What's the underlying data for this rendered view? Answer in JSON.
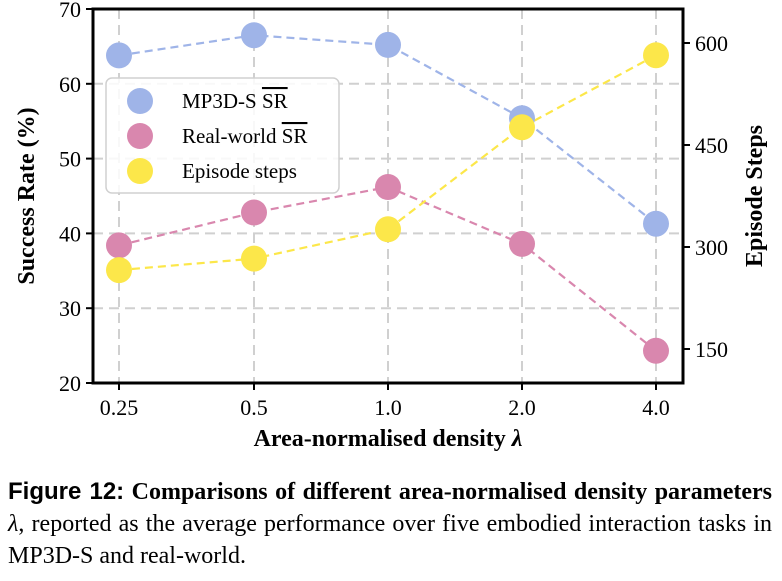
{
  "chart_data": {
    "type": "line",
    "categories": [
      "0.25",
      "0.5",
      "1.0",
      "2.0",
      "4.0"
    ],
    "xlabel": "Area-normalised density λ",
    "ylabel": "Success Rate (%)",
    "y2label": "Episode Steps",
    "ylim": [
      20,
      70
    ],
    "y2lim": [
      100,
      650
    ],
    "yticks": [
      "20",
      "30",
      "40",
      "50",
      "60",
      "70"
    ],
    "y2ticks": [
      "150",
      "300",
      "450",
      "600"
    ],
    "grid": true,
    "legend_position": "upper-left",
    "series": [
      {
        "name": "MP3D-S SR",
        "axis": "left",
        "color": "#9fb4e8",
        "values": [
          63.8,
          66.5,
          65.2,
          55.4,
          41.3
        ]
      },
      {
        "name": "Real-world SR",
        "axis": "left",
        "color": "#d987ae",
        "values": [
          38.4,
          42.8,
          46.2,
          38.6,
          24.3
        ]
      },
      {
        "name": "Episode steps",
        "axis": "right",
        "color": "#fce74a",
        "values": [
          266,
          283,
          326,
          476,
          582
        ]
      }
    ]
  },
  "caption": {
    "label": "Figure 12:",
    "title": "Comparisons of different area-normalised density parameters",
    "lambda": "λ",
    "rest": ", reported as the average performance over five embodied interaction tasks in MP3D-S and real-world."
  }
}
